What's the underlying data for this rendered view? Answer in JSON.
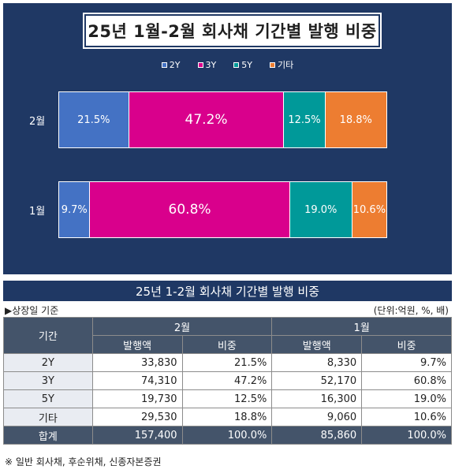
{
  "chart_data": {
    "type": "bar",
    "orientation": "horizontal",
    "stacked": true,
    "title": "25년 1월-2월 회사채 기간별 발행 비중",
    "categories": [
      "2월",
      "1월"
    ],
    "series": [
      {
        "name": "2Y",
        "color": "#4472c4",
        "values": [
          21.5,
          9.7
        ],
        "labels": [
          "21.5%",
          "9.7%"
        ]
      },
      {
        "name": "3Y",
        "color": "#d9008c",
        "values": [
          47.2,
          60.8
        ],
        "labels": [
          "47.2%",
          "60.8%"
        ]
      },
      {
        "name": "5Y",
        "color": "#009999",
        "values": [
          12.5,
          19.0
        ],
        "labels": [
          "12.5%",
          "19.0%"
        ]
      },
      {
        "name": "기타",
        "color": "#ed7d31",
        "values": [
          18.8,
          10.6
        ],
        "labels": [
          "18.8%",
          "10.6%"
        ]
      }
    ],
    "xlim": [
      0,
      100
    ],
    "legend_position": "top-center"
  },
  "table": {
    "title": "25년 1-2월 회사채 기간별 발행 비중",
    "basis_note": "▶상장일 기준",
    "unit_note": "(단위:억원, %, 배)",
    "period_header": "기간",
    "month_headers": [
      "2월",
      "1월"
    ],
    "sub_headers": [
      "발행액",
      "비중",
      "발행액",
      "비중"
    ],
    "rows": [
      {
        "label": "2Y",
        "cells": [
          "33,830",
          "21.5%",
          "8,330",
          "9.7%"
        ]
      },
      {
        "label": "3Y",
        "cells": [
          "74,310",
          "47.2%",
          "52,170",
          "60.8%"
        ]
      },
      {
        "label": "5Y",
        "cells": [
          "19,730",
          "12.5%",
          "16,300",
          "19.0%"
        ]
      },
      {
        "label": "기타",
        "cells": [
          "29,530",
          "18.8%",
          "9,060",
          "10.6%"
        ]
      }
    ],
    "total": {
      "label": "합계",
      "cells": [
        "157,400",
        "100.0%",
        "85,860",
        "100.0%"
      ]
    },
    "footnote": "※ 일반 회사채, 후순위채, 신종자본증권"
  }
}
